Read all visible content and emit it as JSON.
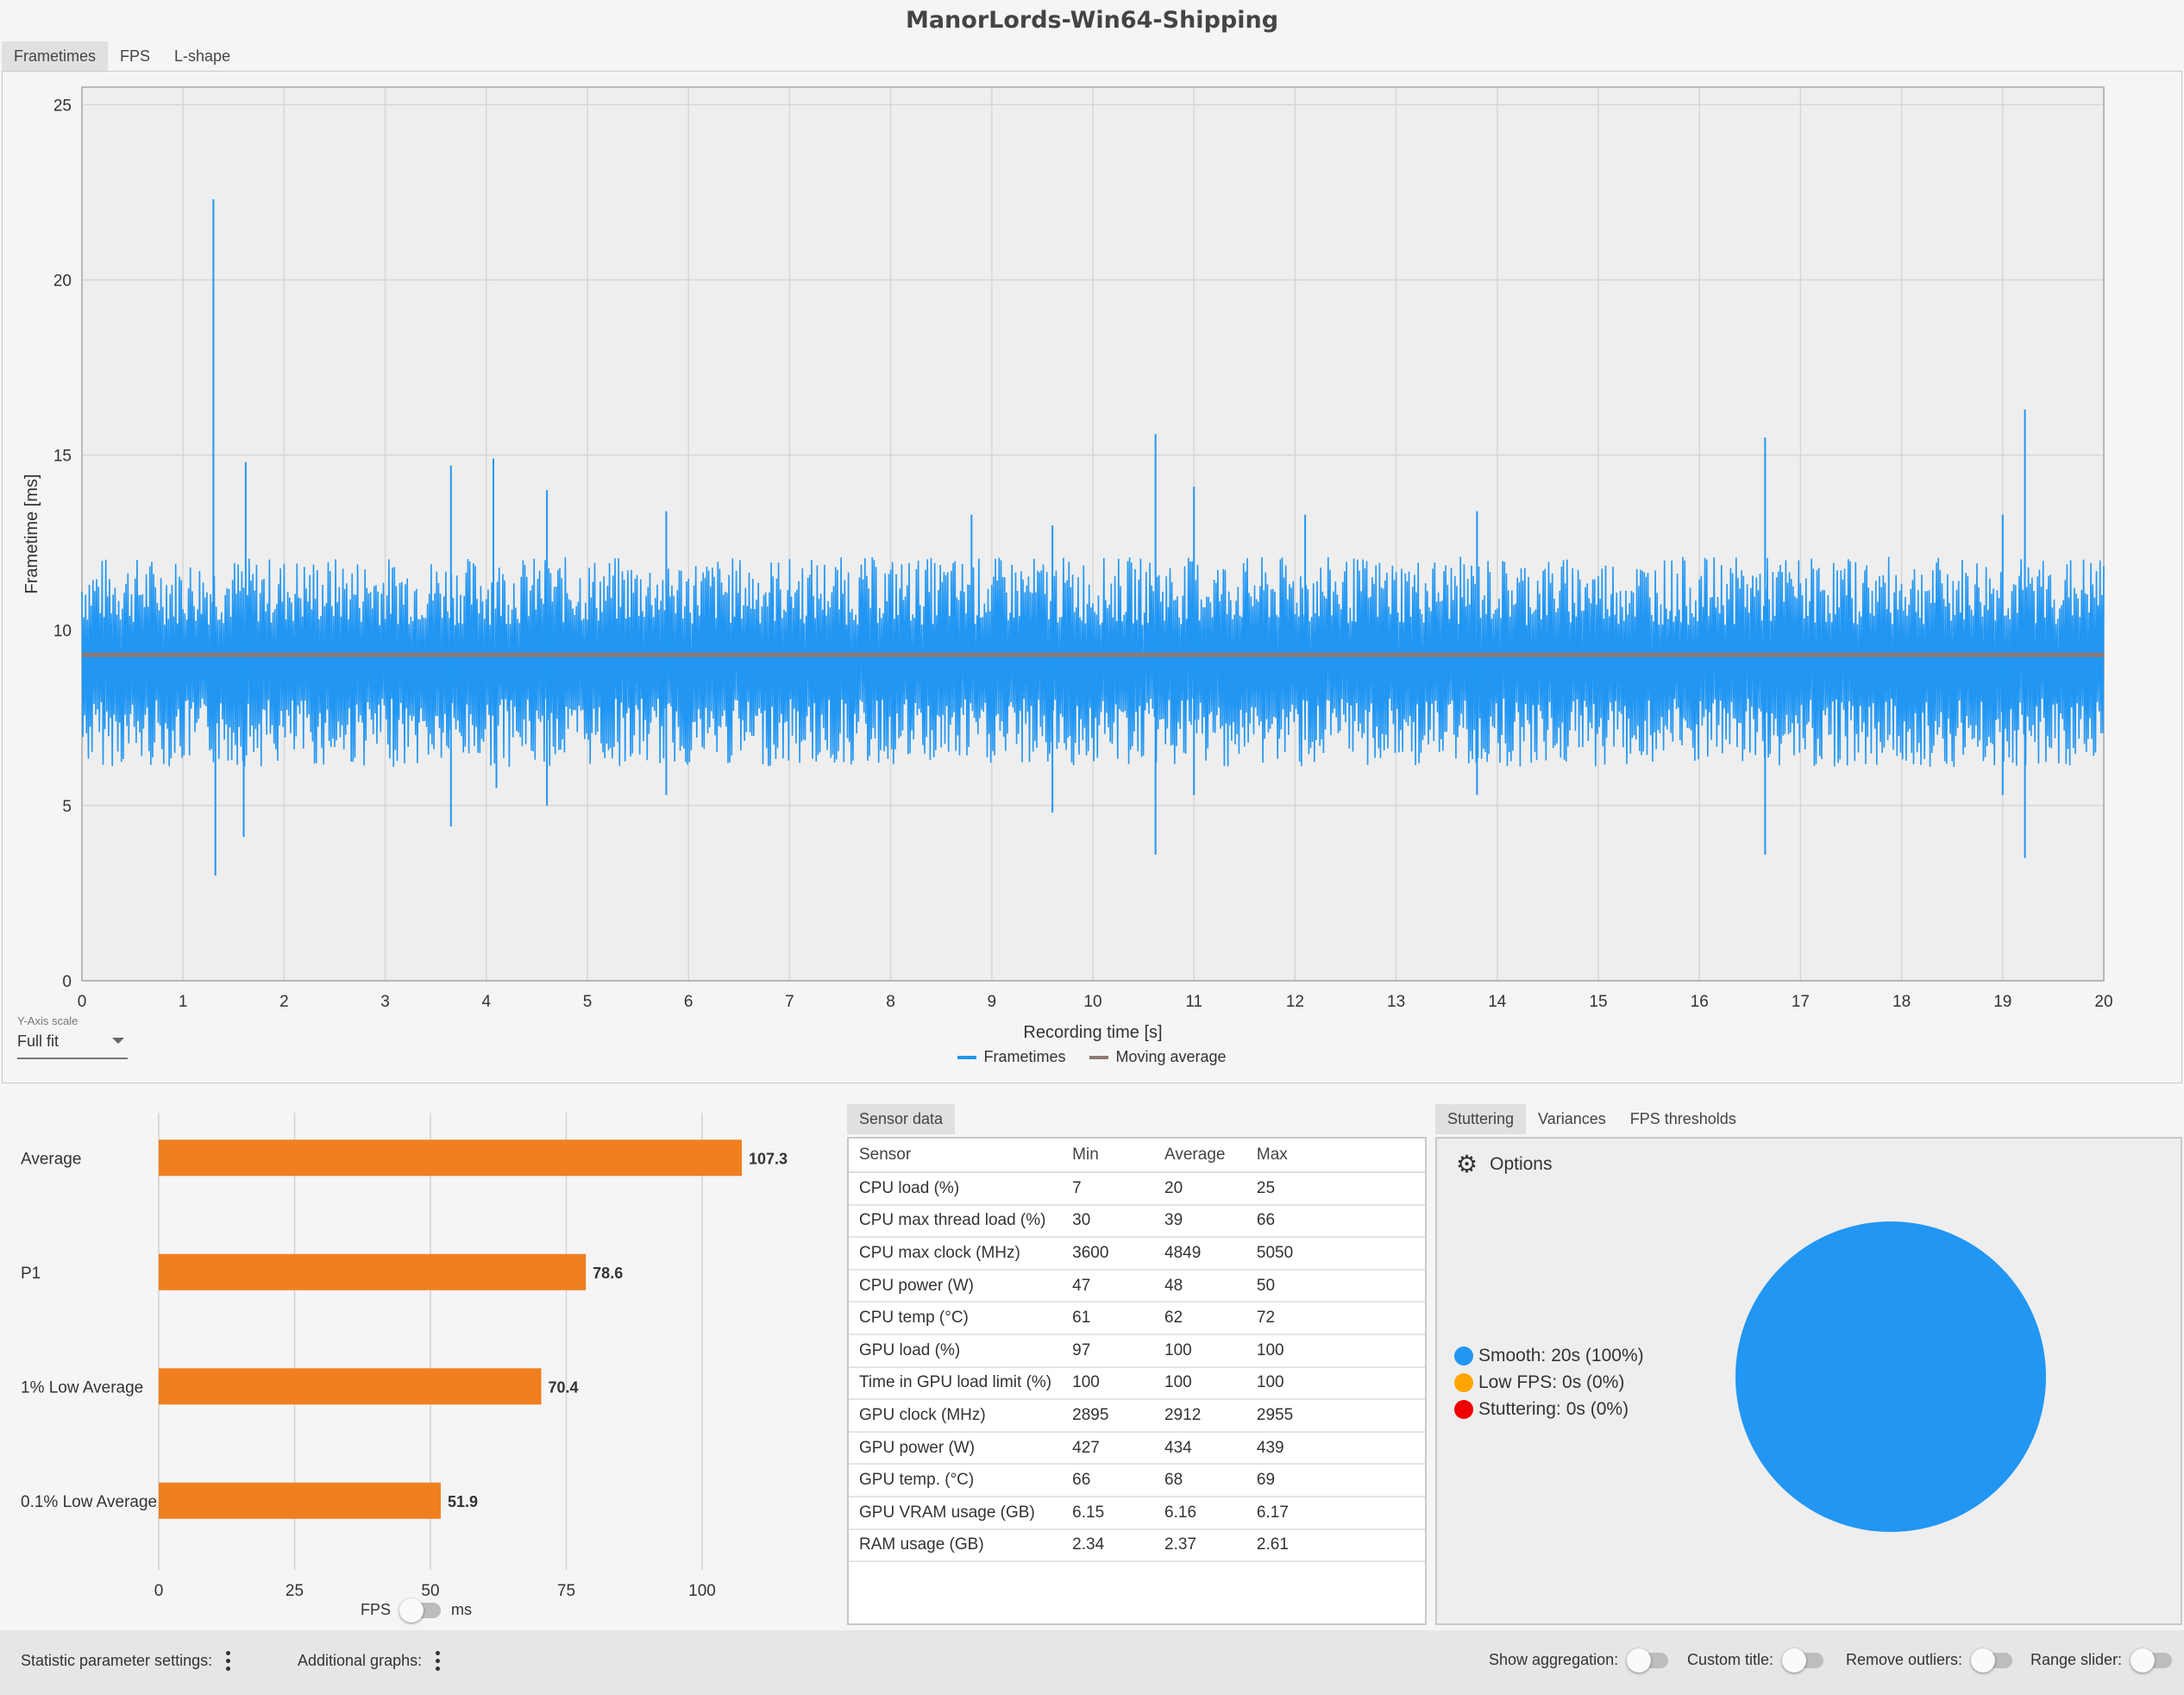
{
  "window": {
    "title": "ManorLords-Win64-Shipping"
  },
  "top_tabs": [
    {
      "label": "Frametimes",
      "active": true
    },
    {
      "label": "FPS",
      "active": false
    },
    {
      "label": "L-shape",
      "active": false
    }
  ],
  "y_axis_scale": {
    "label": "Y-Axis scale",
    "value": "Full fit"
  },
  "frametime_legend": [
    {
      "label": "Frametimes",
      "color": "#2196f3"
    },
    {
      "label": "Moving average",
      "color": "#8d6e63"
    }
  ],
  "frametime_chart": {
    "type": "line",
    "xlabel": "Recording time [s]",
    "ylabel": "Frametime [ms]",
    "xlim": [
      0,
      20
    ],
    "ylim": [
      0,
      25.5
    ],
    "x_ticks": [
      0,
      1,
      2,
      3,
      4,
      5,
      6,
      7,
      8,
      9,
      10,
      11,
      12,
      13,
      14,
      15,
      16,
      17,
      18,
      19,
      20
    ],
    "y_ticks": [
      0,
      5,
      10,
      15,
      20,
      25
    ],
    "frametime_band_ms": [
      6.5,
      12.5
    ],
    "moving_average_ms": 9.3,
    "spikes": [
      {
        "x": 1.3,
        "y": 22.3
      },
      {
        "x": 1.32,
        "y": 3.0
      },
      {
        "x": 1.62,
        "y": 14.8
      },
      {
        "x": 1.6,
        "y": 4.1
      },
      {
        "x": 3.65,
        "y": 14.7
      },
      {
        "x": 3.65,
        "y": 4.4
      },
      {
        "x": 4.07,
        "y": 14.9
      },
      {
        "x": 4.1,
        "y": 5.5
      },
      {
        "x": 4.6,
        "y": 14.0
      },
      {
        "x": 4.6,
        "y": 5.0
      },
      {
        "x": 5.78,
        "y": 13.4
      },
      {
        "x": 5.78,
        "y": 5.3
      },
      {
        "x": 8.8,
        "y": 13.3
      },
      {
        "x": 9.6,
        "y": 4.8
      },
      {
        "x": 9.6,
        "y": 13.0
      },
      {
        "x": 10.62,
        "y": 15.6
      },
      {
        "x": 10.62,
        "y": 3.6
      },
      {
        "x": 11.0,
        "y": 14.1
      },
      {
        "x": 11.0,
        "y": 5.3
      },
      {
        "x": 12.1,
        "y": 13.3
      },
      {
        "x": 13.8,
        "y": 13.4
      },
      {
        "x": 13.8,
        "y": 5.3
      },
      {
        "x": 16.65,
        "y": 15.5
      },
      {
        "x": 16.65,
        "y": 3.6
      },
      {
        "x": 19.22,
        "y": 16.3
      },
      {
        "x": 19.22,
        "y": 3.5
      },
      {
        "x": 19.0,
        "y": 13.3
      },
      {
        "x": 19.0,
        "y": 5.3
      }
    ]
  },
  "bar_chart": {
    "type": "bar",
    "categories": [
      "Average",
      "P1",
      "1% Low Average",
      "0.1% Low Average"
    ],
    "values": [
      107.3,
      78.6,
      70.4,
      51.9
    ],
    "value_labels": [
      "107.3",
      "78.6",
      "70.4",
      "51.9"
    ],
    "x_ticks": [
      0,
      25,
      50,
      75,
      100
    ],
    "xlim": [
      0,
      120
    ],
    "color": "#f07f1f"
  },
  "fps_toggle": {
    "left_label": "FPS",
    "right_label": "ms"
  },
  "sensor_tab": "Sensor data",
  "sensor_table": {
    "headers": [
      "Sensor",
      "Min",
      "Average",
      "Max"
    ],
    "rows": [
      [
        "CPU load (%)",
        "7",
        "20",
        "25"
      ],
      [
        "CPU max thread load (%)",
        "30",
        "39",
        "66"
      ],
      [
        "CPU max clock (MHz)",
        "3600",
        "4849",
        "5050"
      ],
      [
        "CPU power (W)",
        "47",
        "48",
        "50"
      ],
      [
        "CPU temp (°C)",
        "61",
        "62",
        "72"
      ],
      [
        "GPU load (%)",
        "97",
        "100",
        "100"
      ],
      [
        "Time in GPU load limit (%)",
        "100",
        "100",
        "100"
      ],
      [
        "GPU clock (MHz)",
        "2895",
        "2912",
        "2955"
      ],
      [
        "GPU power (W)",
        "427",
        "434",
        "439"
      ],
      [
        "GPU temp. (°C)",
        "66",
        "68",
        "69"
      ],
      [
        "GPU VRAM usage (GB)",
        "6.15",
        "6.16",
        "6.17"
      ],
      [
        "RAM usage (GB)",
        "2.34",
        "2.37",
        "2.61"
      ]
    ]
  },
  "right_tabs": [
    {
      "label": "Stuttering",
      "active": true
    },
    {
      "label": "Variances",
      "active": false
    },
    {
      "label": "FPS thresholds",
      "active": false
    }
  ],
  "stuttering": {
    "options_label": "Options",
    "legend": [
      {
        "label": "Smooth:",
        "value": "20s (100%)",
        "color": "#2196f3"
      },
      {
        "label": "Low FPS:",
        "value": "0s (0%)",
        "color": "#ffa500"
      },
      {
        "label": "Stuttering:",
        "value": "0s (0%)",
        "color": "#ee0000"
      }
    ]
  },
  "chart_data": {
    "type": "pie",
    "categories": [
      "Smooth",
      "Low FPS",
      "Stuttering"
    ],
    "values": [
      100,
      0,
      0
    ],
    "colors": [
      "#2196f3",
      "#ffa500",
      "#ee0000"
    ]
  },
  "bottom_bar": {
    "statistic_settings": "Statistic parameter settings:",
    "additional_graphs": "Additional graphs:",
    "show_aggregation": "Show aggregation:",
    "custom_title": "Custom title:",
    "remove_outliers": "Remove outliers:",
    "range_slider": "Range slider:"
  }
}
